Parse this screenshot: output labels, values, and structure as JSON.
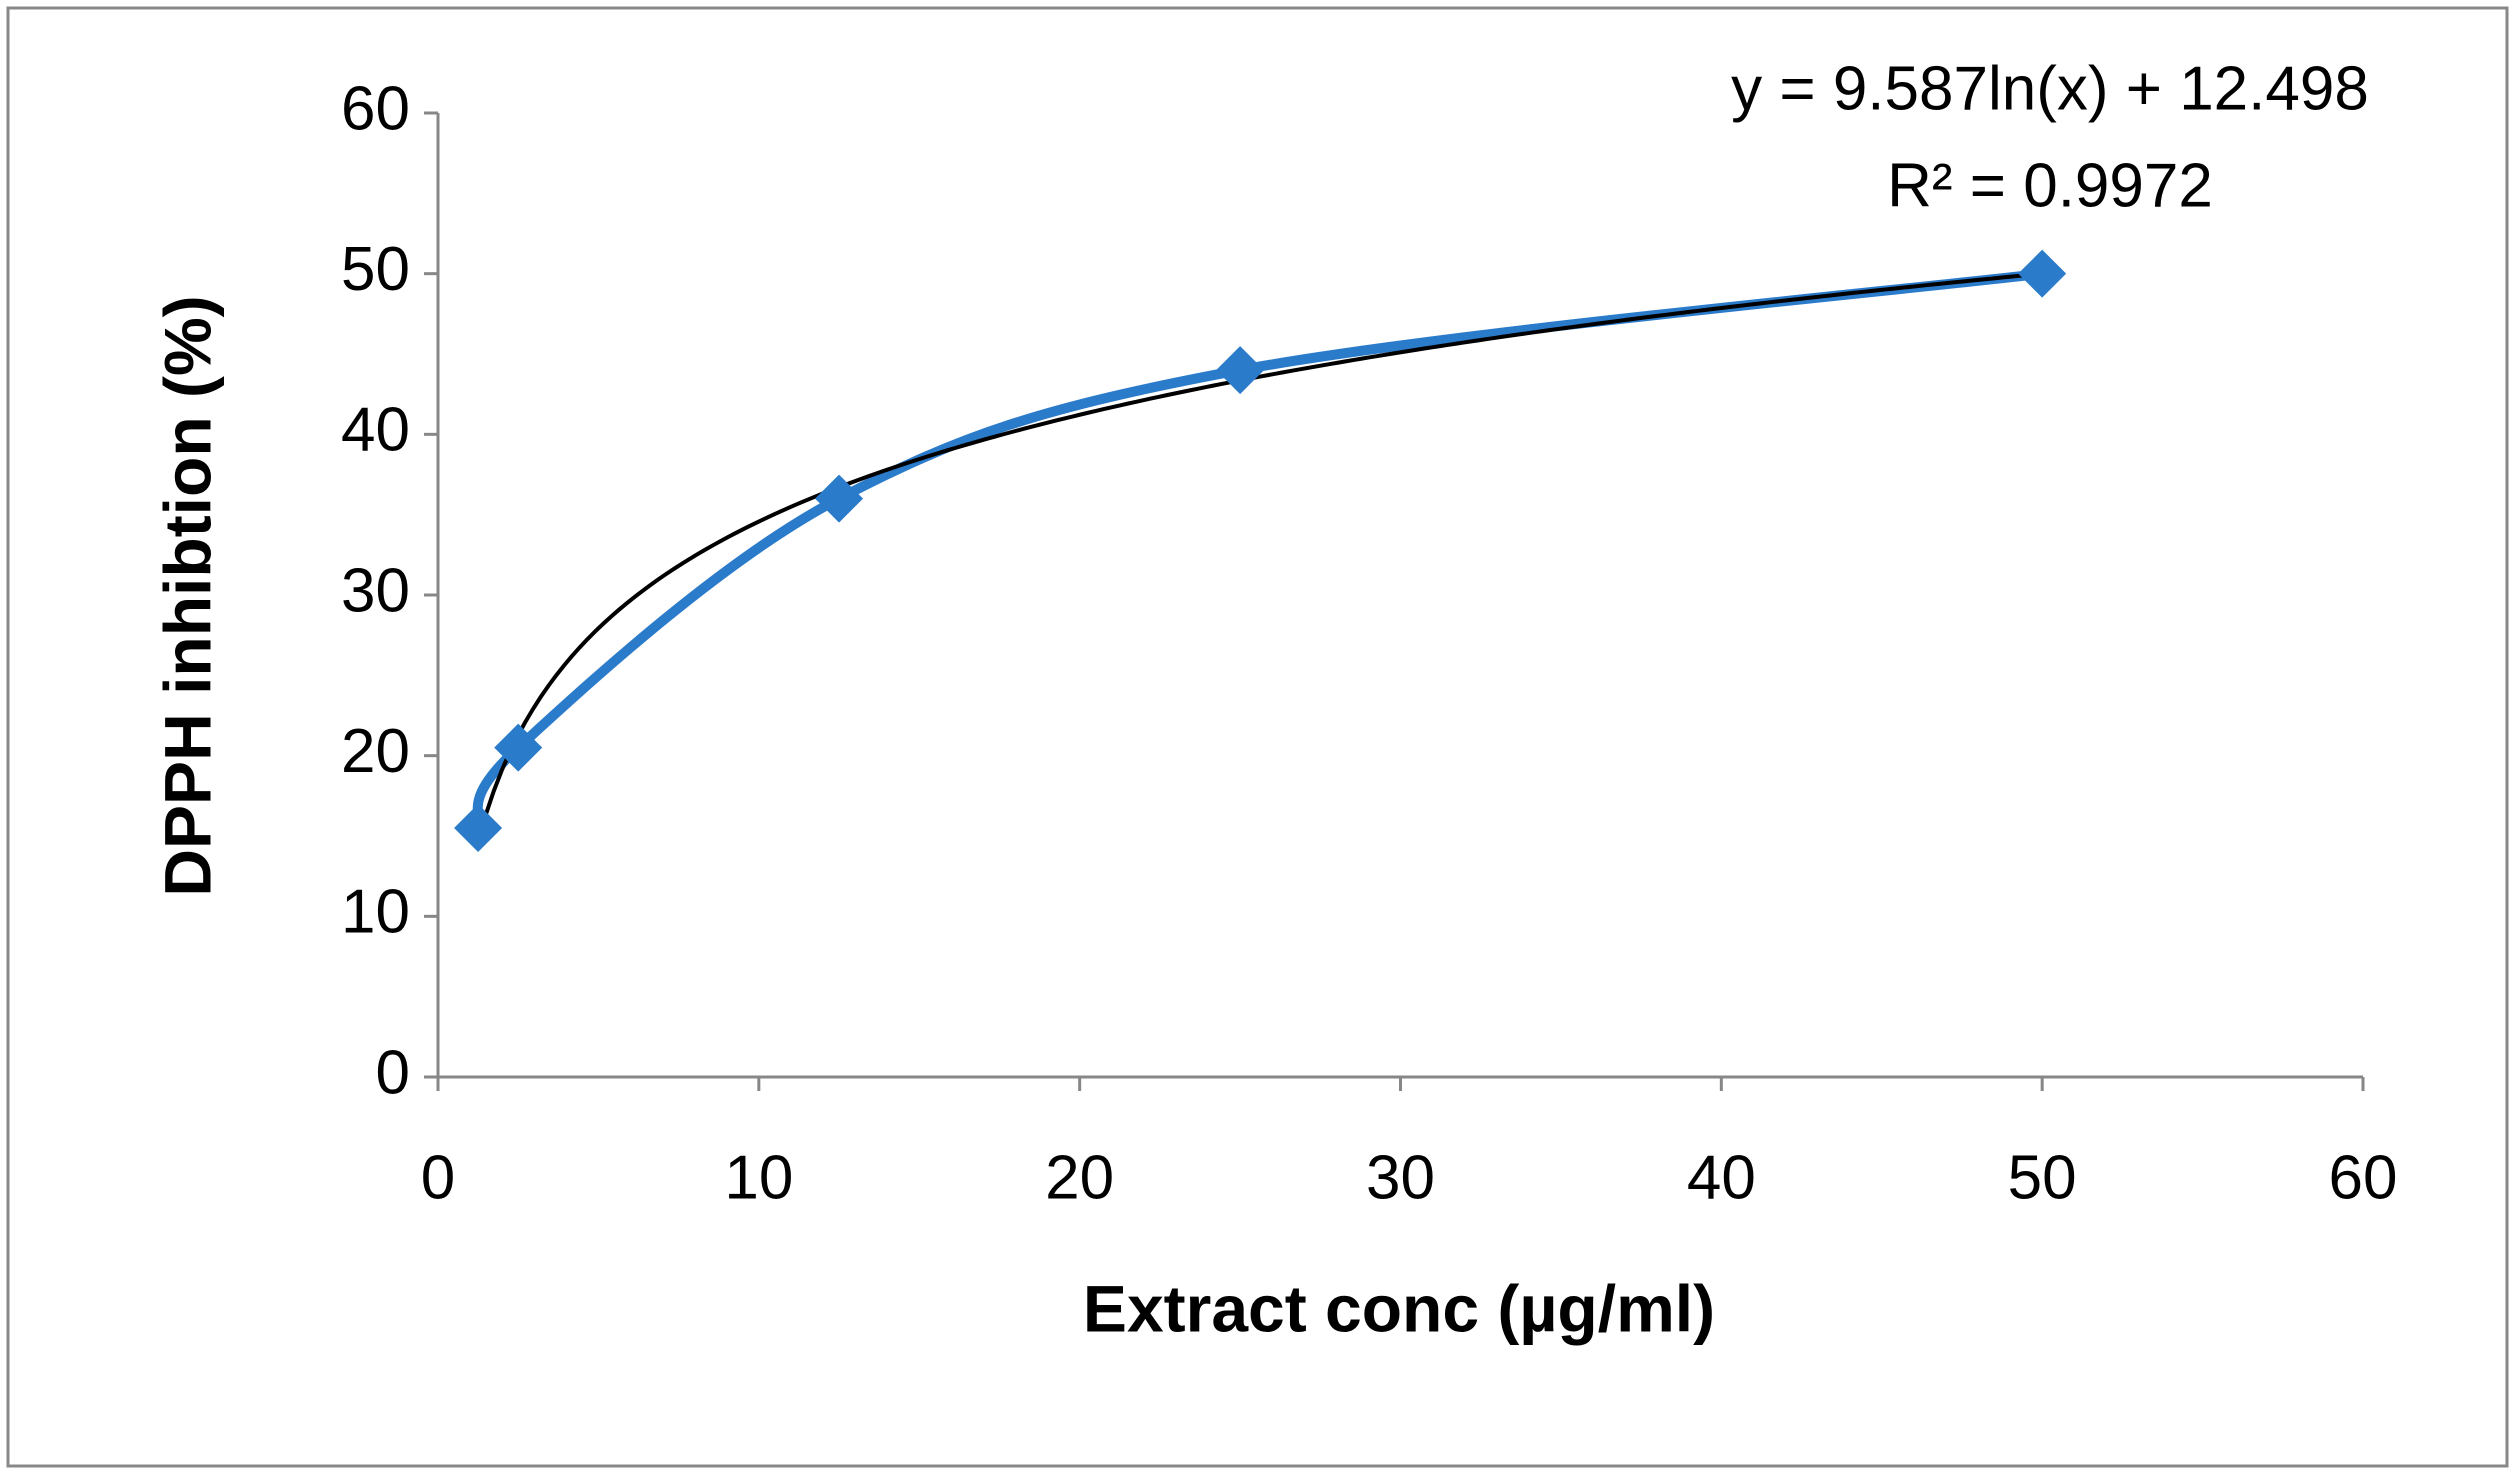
{
  "chart_data": {
    "type": "scatter",
    "x_label": "Extract conc (µg/ml)",
    "y_label": "DPPH inhibtion (%)",
    "series": [
      {
        "x": [
          1.25,
          2.5,
          12.5,
          25,
          50
        ],
        "values": [
          15.5,
          20.5,
          36,
          44,
          50
        ],
        "color": "#2b7bcb"
      }
    ],
    "trendline": {
      "kind": "log",
      "a": 9.587,
      "b": 12.498,
      "color": "#000000",
      "equation": "y = 9.587ln(x) + 12.498",
      "r_squared": "R² = 0.9972"
    },
    "xlim": [
      0,
      60
    ],
    "xticks": [
      0,
      10,
      20,
      30,
      40,
      50,
      60
    ],
    "ylim": [
      0,
      60
    ],
    "yticks": [
      0,
      10,
      20,
      30,
      40,
      50,
      60
    ],
    "grid": false
  }
}
